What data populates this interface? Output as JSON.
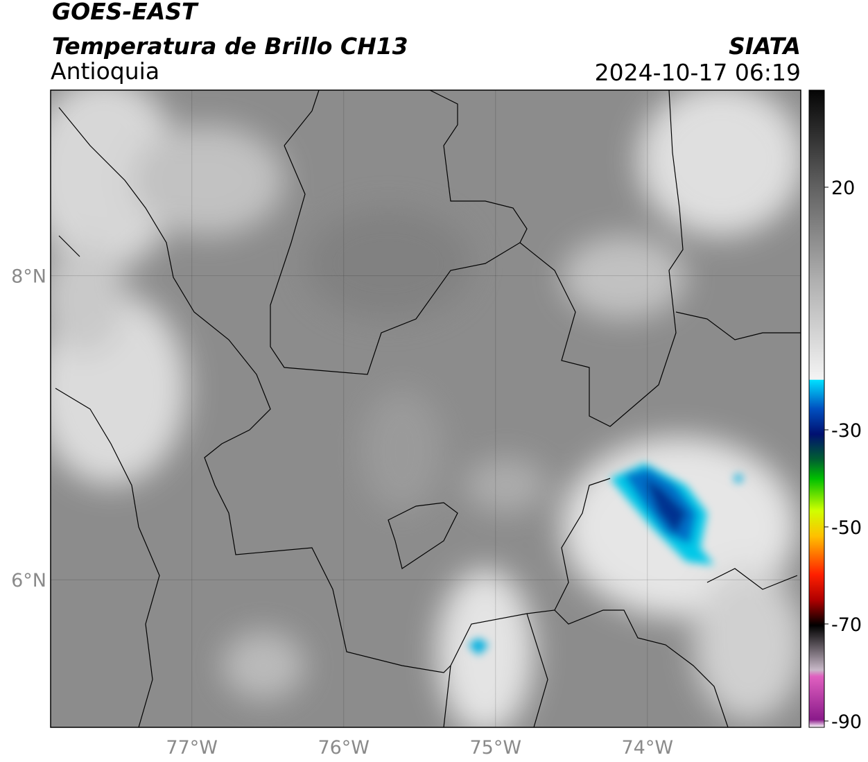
{
  "header": {
    "title": "GOES-EAST",
    "subtitle": "Temperatura de Brillo CH13",
    "region": "Antioquia",
    "source": "SIATA",
    "datetime": "2024-10-17 06:19"
  },
  "map": {
    "lon_range": [
      -77.93,
      -72.99
    ],
    "lat_range": [
      5.03,
      9.22
    ],
    "lon_ticks": [
      {
        "value": -77,
        "label": "77°W"
      },
      {
        "value": -76,
        "label": "76°W"
      },
      {
        "value": -75,
        "label": "75°W"
      },
      {
        "value": -74,
        "label": "74°W"
      }
    ],
    "lat_ticks": [
      {
        "value": 8,
        "label": "8°N"
      },
      {
        "value": 6,
        "label": "6°N"
      }
    ]
  },
  "colorbar": {
    "range": [
      -91.3,
      40
    ],
    "ticks": [
      20,
      -30,
      -50,
      -70,
      -90
    ]
  }
}
